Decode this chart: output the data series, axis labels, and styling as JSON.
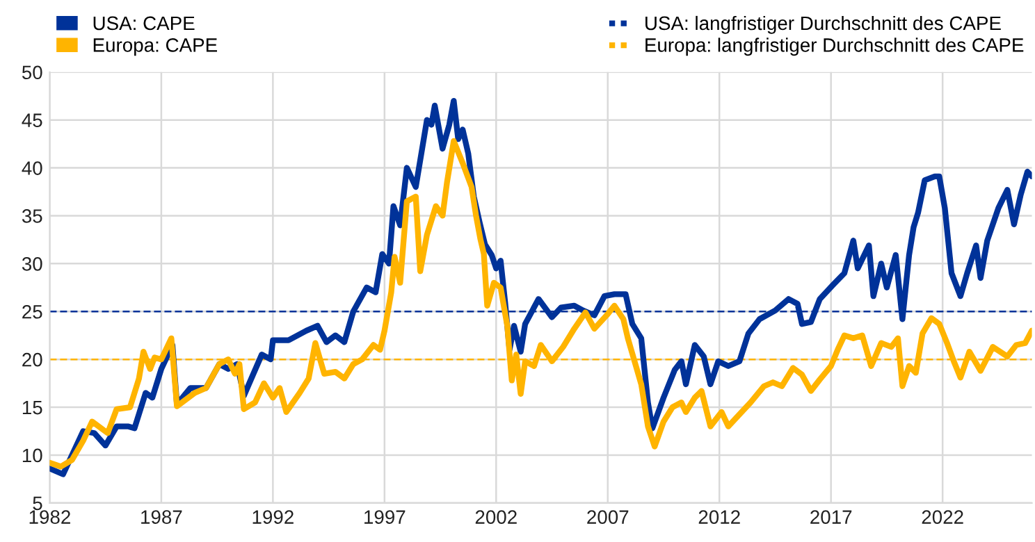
{
  "chart_data": {
    "type": "line",
    "xlim": [
      1982,
      2026
    ],
    "xticks": [
      1982,
      1987,
      1992,
      1997,
      2002,
      2007,
      2012,
      2017,
      2022
    ],
    "ylim": [
      5,
      50
    ],
    "yticks": [
      5,
      10,
      15,
      20,
      25,
      30,
      35,
      40,
      45,
      50
    ],
    "grid": true,
    "legend": "top",
    "line_style": "solid",
    "marker": "none",
    "series": [
      {
        "name": "USA: CAPE",
        "color": "#003299",
        "x": [
          1982.0,
          1982.6,
          1983.0,
          1983.5,
          1984.0,
          1984.5,
          1985.0,
          1985.5,
          1985.8,
          1986.3,
          1986.6,
          1987.0,
          1987.5,
          1987.7,
          1988.3,
          1989.0,
          1989.6,
          1990.0,
          1990.4,
          1990.7,
          1991.5,
          1991.9,
          1992.0,
          1992.7,
          1993.5,
          1994.0,
          1994.4,
          1994.8,
          1995.2,
          1995.6,
          1996.2,
          1996.6,
          1996.9,
          1997.2,
          1997.4,
          1997.7,
          1998.0,
          1998.4,
          1998.9,
          1999.1,
          1999.25,
          1999.6,
          1999.9,
          2000.1,
          2000.3,
          2000.5,
          2000.75,
          2001.0,
          2001.26,
          2001.5,
          2001.8,
          2002.0,
          2002.2,
          2002.4,
          2002.6,
          2002.8,
          2003.1,
          2003.3,
          2003.9,
          2004.5,
          2004.9,
          2005.5,
          2005.9,
          2006.4,
          2006.85,
          2007.3,
          2007.8,
          2008.1,
          2008.5,
          2008.8,
          2009.0,
          2009.5,
          2010.0,
          2010.3,
          2010.5,
          2010.9,
          2011.3,
          2011.6,
          2011.95,
          2012.4,
          2012.9,
          2013.3,
          2013.8,
          2014.5,
          2015.1,
          2015.5,
          2015.7,
          2016.1,
          2016.5,
          2017.1,
          2017.6,
          2018.0,
          2018.2,
          2018.7,
          2018.9,
          2019.25,
          2019.5,
          2019.9,
          2020.2,
          2020.5,
          2020.7,
          2020.9,
          2021.2,
          2021.65,
          2021.85,
          2022.1,
          2022.4,
          2022.8,
          2023.1,
          2023.5,
          2023.7,
          2024.0,
          2024.5,
          2024.9,
          2025.2,
          2025.5,
          2025.8,
          2026.0
        ],
        "values": [
          8.6,
          8.0,
          10,
          12.5,
          12.3,
          11,
          13,
          13,
          12.8,
          16.5,
          16,
          19,
          21.5,
          15.3,
          17,
          17,
          19.5,
          19,
          19.5,
          16.2,
          20.5,
          20,
          22,
          22,
          23,
          23.5,
          21.8,
          22.5,
          21.8,
          25,
          27.5,
          27,
          31,
          30,
          36,
          34,
          40,
          38,
          45,
          44.5,
          46.5,
          42,
          44.5,
          47,
          43,
          44,
          41.5,
          37,
          34.3,
          32,
          30.9,
          29.5,
          30.3,
          26,
          21,
          23.5,
          20.8,
          23.7,
          26.3,
          24.4,
          25.4,
          25.6,
          25.1,
          24.6,
          26.6,
          26.8,
          26.8,
          23.7,
          22.2,
          15.5,
          12.8,
          16,
          18.9,
          19.8,
          17.4,
          21.5,
          20.3,
          17.4,
          19.8,
          19.3,
          19.8,
          22.7,
          24.2,
          25.1,
          26.3,
          25.8,
          23.7,
          23.9,
          26.3,
          27.8,
          29,
          32.4,
          29.5,
          31.9,
          26.6,
          30,
          27.5,
          30.9,
          24.2,
          30.9,
          33.8,
          35.3,
          38.7,
          39.1,
          39.1,
          35.8,
          29,
          26.6,
          29,
          31.9,
          28.5,
          32.4,
          35.8,
          37.7,
          34.1,
          37.2,
          39.6,
          39.1
        ]
      },
      {
        "name": "Europa: CAPE",
        "color": "#ffb400",
        "x": [
          1982.0,
          1982.5,
          1983.0,
          1983.5,
          1983.9,
          1984.6,
          1985.0,
          1985.6,
          1986.0,
          1986.2,
          1986.5,
          1986.7,
          1987.0,
          1987.45,
          1987.7,
          1988.5,
          1989.0,
          1989.6,
          1990.0,
          1990.3,
          1990.5,
          1990.7,
          1991.2,
          1991.6,
          1992.0,
          1992.3,
          1992.6,
          1993.2,
          1993.6,
          1993.9,
          1994.3,
          1994.8,
          1995.2,
          1995.6,
          1996.0,
          1996.5,
          1996.8,
          1997.0,
          1997.3,
          1997.45,
          1997.7,
          1998.0,
          1998.4,
          1998.6,
          1998.9,
          1999.3,
          1999.6,
          1999.8,
          2000.1,
          2000.5,
          2000.9,
          2001.1,
          2001.3,
          2001.45,
          2001.6,
          2001.9,
          2002.2,
          2002.5,
          2002.7,
          2002.9,
          2003.1,
          2003.3,
          2003.7,
          2004.0,
          2004.5,
          2005.0,
          2005.5,
          2006.0,
          2006.4,
          2006.95,
          2007.3,
          2007.7,
          2007.9,
          2008.2,
          2008.5,
          2008.8,
          2009.1,
          2009.5,
          2009.9,
          2010.3,
          2010.5,
          2010.9,
          2011.2,
          2011.6,
          2012.1,
          2012.4,
          2013.0,
          2013.4,
          2014.0,
          2014.4,
          2014.8,
          2015.3,
          2015.7,
          2016.1,
          2016.5,
          2017.0,
          2017.3,
          2017.6,
          2018.0,
          2018.4,
          2018.8,
          2019.25,
          2019.7,
          2020.0,
          2020.2,
          2020.5,
          2020.8,
          2021.1,
          2021.5,
          2021.85,
          2022.2,
          2022.5,
          2022.8,
          2023.2,
          2023.7,
          2024.25,
          2024.9,
          2025.3,
          2025.7,
          2026.0
        ],
        "values": [
          9.2,
          8.8,
          9.5,
          11.5,
          13.5,
          12.3,
          14.8,
          15,
          18,
          20.8,
          19,
          20.2,
          20,
          22.2,
          15.1,
          16.5,
          17,
          19.5,
          20,
          18.5,
          19.5,
          14.8,
          15.5,
          17.5,
          16,
          17,
          14.5,
          16.5,
          18,
          21.7,
          18.5,
          18.7,
          18,
          19.5,
          20,
          21.5,
          21,
          23,
          27,
          30.7,
          28,
          36.5,
          37,
          29.2,
          33,
          36,
          35,
          38.5,
          42.8,
          40.5,
          38,
          35,
          32.5,
          31,
          25.6,
          28,
          27.5,
          23.5,
          17.8,
          20.5,
          16.4,
          19.8,
          19.3,
          21.5,
          19.8,
          21.3,
          23.2,
          24.9,
          23.2,
          24.6,
          25.6,
          24.2,
          22.2,
          19.8,
          17.4,
          13,
          10.9,
          13.5,
          15,
          15.5,
          14.5,
          16,
          16.7,
          13,
          14.5,
          13,
          14.5,
          15.5,
          17.2,
          17.6,
          17.2,
          19.1,
          18.4,
          16.7,
          17.9,
          19.3,
          21,
          22.5,
          22.2,
          22.5,
          19.3,
          21.7,
          21.3,
          22.2,
          17.2,
          19.3,
          18.6,
          22.7,
          24.3,
          23.7,
          21.7,
          19.8,
          18.1,
          20.8,
          18.8,
          21.3,
          20.3,
          21.5,
          21.7,
          23
        ]
      }
    ],
    "ref_lines": [
      {
        "axis": "y",
        "value": 25,
        "label": "USA: langfristiger Durchschnitt des CAPE",
        "color": "#003299",
        "line_style": "dashed"
      },
      {
        "axis": "y",
        "value": 20,
        "label": "Europa: langfristiger Durchschnitt des CAPE",
        "color": "#ffb400",
        "line_style": "dashed"
      }
    ]
  }
}
